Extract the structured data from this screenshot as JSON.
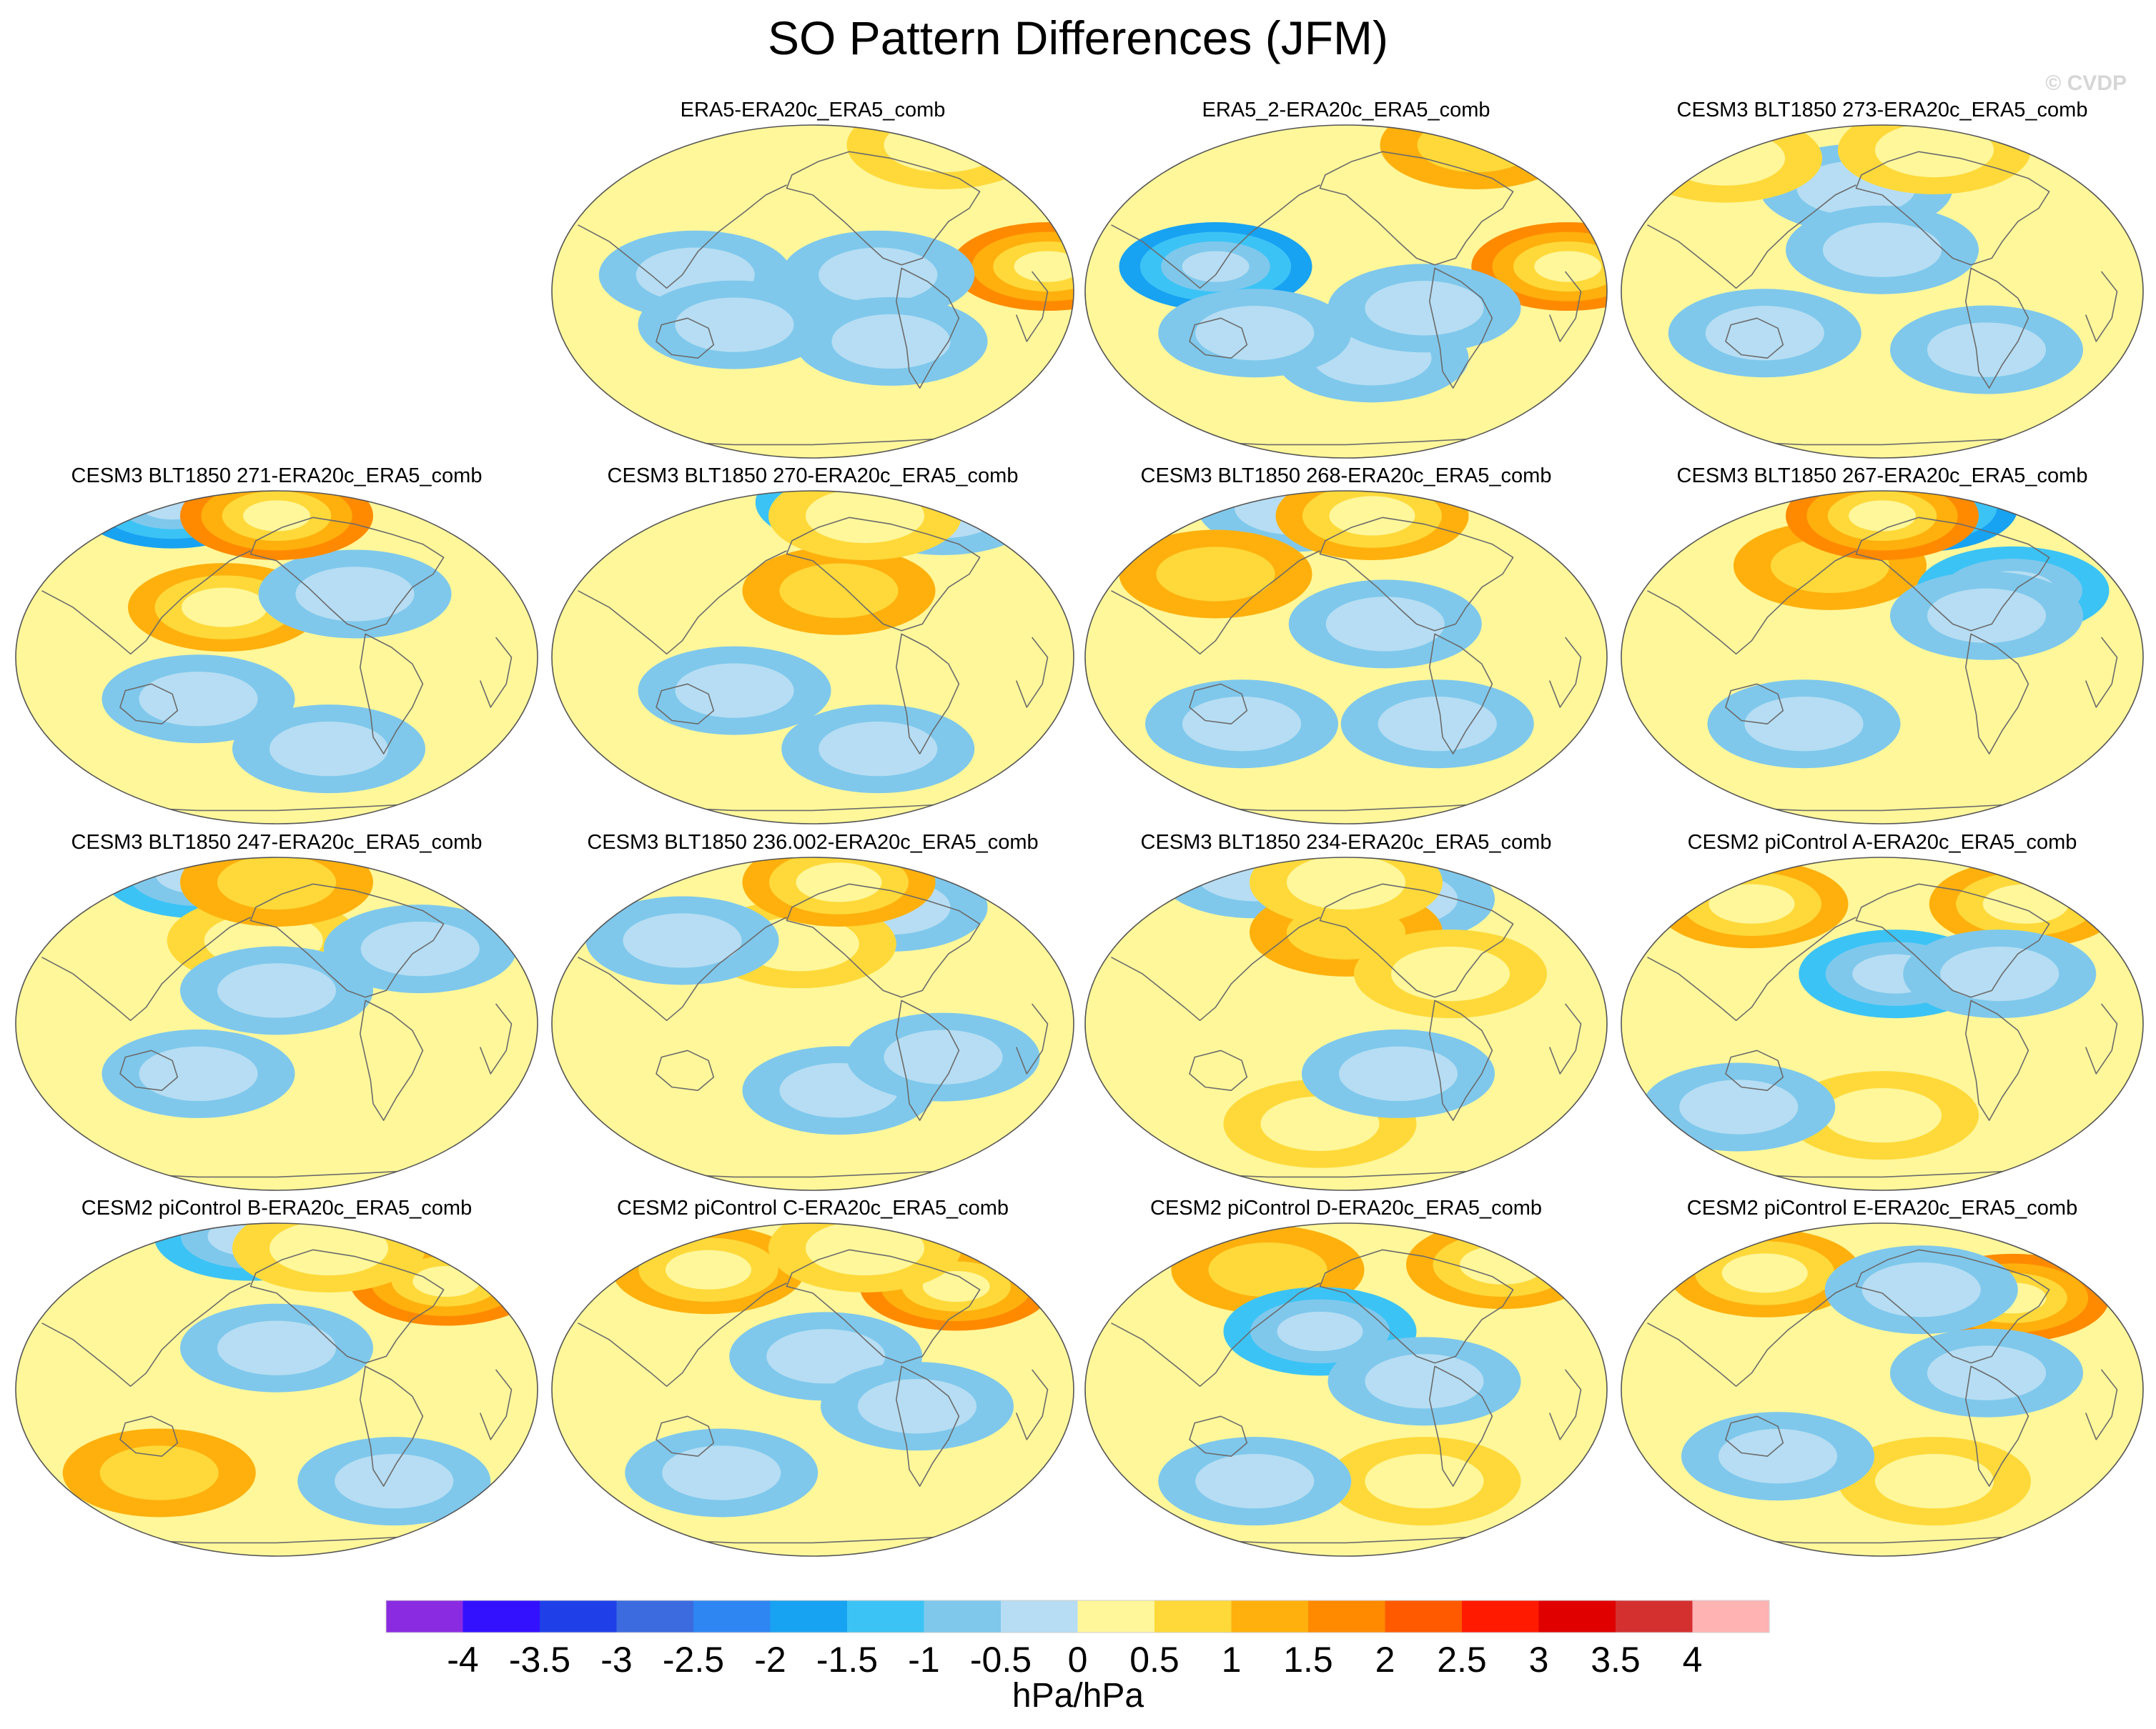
{
  "chart_data": {
    "type": "heatmap",
    "title": "SO Pattern Differences (JFM)",
    "watermark": "© CVDP",
    "colorbar": {
      "units": "hPa/hPa",
      "tick_labels": [
        "-4",
        "-3.5",
        "-3",
        "-2.5",
        "-2",
        "-1.5",
        "-1",
        "-0.5",
        "0",
        "0.5",
        "1",
        "1.5",
        "2",
        "2.5",
        "3",
        "3.5",
        "4"
      ],
      "levels": [
        -4,
        -3.5,
        -3,
        -2.5,
        -2,
        -1.5,
        -1,
        -0.5,
        0,
        0.5,
        1,
        1.5,
        2,
        2.5,
        3,
        3.5,
        4
      ],
      "colors": [
        "#8a2be2",
        "#3311ff",
        "#1f3fe8",
        "#3b6bdf",
        "#2d86f2",
        "#18a2f2",
        "#3cc3f5",
        "#7fc8ec",
        "#b6ddf3",
        "#fff79a",
        "#ffd93a",
        "#ffb00d",
        "#ff8a00",
        "#ff5a00",
        "#ff1a00",
        "#e00000",
        "#d53030",
        "#ffb3b3"
      ]
    },
    "panels": [
      {
        "label": "ERA5-ERA20c_ERA5_comb",
        "row": 0,
        "col": 1,
        "anomalies": [
          [
            -0.45,
            0.1,
            -0.8
          ],
          [
            0.9,
            0.15,
            1.6
          ],
          [
            0.25,
            0.1,
            -0.6
          ],
          [
            -0.3,
            -0.2,
            -0.6
          ],
          [
            0.3,
            -0.3,
            -0.6
          ],
          [
            0.5,
            0.88,
            0.8
          ]
        ]
      },
      {
        "label": "ERA5_2-ERA20c_ERA5_comb",
        "row": 0,
        "col": 2,
        "anomalies": [
          [
            -0.5,
            0.15,
            -1.6
          ],
          [
            0.85,
            0.15,
            1.6
          ],
          [
            0.1,
            -0.4,
            -0.7
          ],
          [
            -0.35,
            -0.25,
            -0.6
          ],
          [
            0.5,
            0.88,
            1.0
          ],
          [
            0.3,
            -0.1,
            -0.6
          ]
        ]
      },
      {
        "label": "CESM3 BLT1850 273-ERA20c_ERA5_comb",
        "row": 0,
        "col": 3,
        "anomalies": [
          [
            -0.1,
            0.62,
            -0.9
          ],
          [
            0.0,
            0.25,
            -0.8
          ],
          [
            -0.45,
            -0.25,
            -0.6
          ],
          [
            0.4,
            -0.35,
            -0.6
          ],
          [
            0.2,
            0.85,
            0.9
          ],
          [
            -0.6,
            0.8,
            0.7
          ]
        ]
      },
      {
        "label": "CESM3 BLT1850 271-ERA20c_ERA5_comb",
        "row": 1,
        "col": 0,
        "anomalies": [
          [
            -0.4,
            0.92,
            -2.0
          ],
          [
            -0.2,
            0.3,
            1.4
          ],
          [
            0.3,
            0.38,
            -1.0
          ],
          [
            -0.3,
            -0.25,
            -0.7
          ],
          [
            0.2,
            -0.55,
            -0.8
          ],
          [
            0.0,
            0.85,
            1.6
          ]
        ]
      },
      {
        "label": "CESM3 BLT1850 270-ERA20c_ERA5_comb",
        "row": 1,
        "col": 1,
        "anomalies": [
          [
            0.15,
            0.93,
            -1.5
          ],
          [
            0.5,
            0.88,
            -0.9
          ],
          [
            0.1,
            0.4,
            1.0
          ],
          [
            -0.3,
            -0.2,
            -0.7
          ],
          [
            0.25,
            -0.55,
            -0.7
          ],
          [
            0.2,
            0.85,
            0.9
          ]
        ]
      },
      {
        "label": "CESM3 BLT1850 268-ERA20c_ERA5_comb",
        "row": 1,
        "col": 2,
        "anomalies": [
          [
            -0.2,
            0.9,
            -1.0
          ],
          [
            -0.5,
            0.5,
            1.0
          ],
          [
            0.15,
            0.2,
            -0.7
          ],
          [
            -0.4,
            -0.4,
            -0.7
          ],
          [
            0.1,
            0.85,
            1.4
          ],
          [
            0.35,
            -0.4,
            -0.6
          ]
        ]
      },
      {
        "label": "CESM3 BLT1850 267-ERA20c_ERA5_comb",
        "row": 1,
        "col": 3,
        "anomalies": [
          [
            0.15,
            0.9,
            -1.6
          ],
          [
            -0.2,
            0.55,
            1.0
          ],
          [
            0.5,
            0.4,
            -1.1
          ],
          [
            -0.3,
            -0.4,
            -0.7
          ],
          [
            0.0,
            0.85,
            1.6
          ],
          [
            0.4,
            0.25,
            -0.6
          ]
        ]
      },
      {
        "label": "CESM3 BLT1850 247-ERA20c_ERA5_comb",
        "row": 2,
        "col": 0,
        "anomalies": [
          [
            -0.3,
            0.9,
            -1.1
          ],
          [
            -0.05,
            0.5,
            0.9
          ],
          [
            0.55,
            0.45,
            -0.8
          ],
          [
            0.0,
            0.2,
            -0.6
          ],
          [
            0.0,
            0.85,
            1.0
          ],
          [
            -0.3,
            -0.3,
            -0.6
          ]
        ]
      },
      {
        "label": "CESM3 BLT1850 236.002-ERA20c_ERA5_comb",
        "row": 2,
        "col": 1,
        "anomalies": [
          [
            0.3,
            0.7,
            -1.0
          ],
          [
            -0.05,
            0.48,
            0.9
          ],
          [
            -0.5,
            0.5,
            -0.7
          ],
          [
            0.1,
            -0.4,
            -0.7
          ],
          [
            0.1,
            0.85,
            1.2
          ],
          [
            0.5,
            -0.2,
            -0.6
          ]
        ]
      },
      {
        "label": "CESM3 BLT1850 234-ERA20c_ERA5_comb",
        "row": 2,
        "col": 2,
        "anomalies": [
          [
            -0.35,
            0.9,
            -0.9
          ],
          [
            0.2,
            0.75,
            -0.8
          ],
          [
            0.0,
            0.55,
            1.0
          ],
          [
            0.4,
            0.3,
            0.9
          ],
          [
            -0.1,
            -0.6,
            0.8
          ],
          [
            0.0,
            0.85,
            0.9
          ],
          [
            0.2,
            -0.3,
            -0.6
          ]
        ]
      },
      {
        "label": "CESM2 piControl A-ERA20c_ERA5_comb",
        "row": 2,
        "col": 3,
        "anomalies": [
          [
            -0.5,
            0.72,
            1.4
          ],
          [
            0.55,
            0.72,
            1.4
          ],
          [
            0.05,
            0.3,
            -1.3
          ],
          [
            0.45,
            0.3,
            -0.6
          ],
          [
            0.0,
            -0.55,
            0.7
          ],
          [
            -0.55,
            -0.5,
            -0.6
          ]
        ]
      },
      {
        "label": "CESM2 piControl B-ERA20c_ERA5_comb",
        "row": 3,
        "col": 0,
        "anomalies": [
          [
            -0.1,
            0.92,
            -1.5
          ],
          [
            0.65,
            0.65,
            1.8
          ],
          [
            0.0,
            0.25,
            -0.6
          ],
          [
            -0.45,
            -0.5,
            1.0
          ],
          [
            0.45,
            -0.55,
            -0.8
          ],
          [
            0.2,
            0.85,
            0.6
          ]
        ]
      },
      {
        "label": "CESM2 piControl C-ERA20c_ERA5_comb",
        "row": 3,
        "col": 1,
        "anomalies": [
          [
            -0.4,
            0.72,
            1.2
          ],
          [
            0.55,
            0.62,
            1.6
          ],
          [
            0.05,
            0.2,
            -0.6
          ],
          [
            0.4,
            -0.1,
            -0.7
          ],
          [
            0.2,
            0.85,
            0.8
          ],
          [
            -0.35,
            -0.5,
            -0.6
          ]
        ]
      },
      {
        "label": "CESM2 piControl D-ERA20c_ERA5_comb",
        "row": 3,
        "col": 2,
        "anomalies": [
          [
            -0.3,
            0.72,
            1.0
          ],
          [
            0.6,
            0.75,
            1.4
          ],
          [
            -0.1,
            0.35,
            -1.5
          ],
          [
            0.3,
            0.05,
            -0.7
          ],
          [
            0.3,
            -0.55,
            0.9
          ],
          [
            -0.35,
            -0.55,
            -0.6
          ]
        ]
      },
      {
        "label": "CESM2 piControl E-ERA20c_ERA5_comb",
        "row": 3,
        "col": 3,
        "anomalies": [
          [
            -0.45,
            0.7,
            1.4
          ],
          [
            0.5,
            0.55,
            1.8
          ],
          [
            0.15,
            0.6,
            -0.7
          ],
          [
            0.4,
            0.1,
            -0.7
          ],
          [
            0.2,
            -0.55,
            0.8
          ],
          [
            -0.4,
            -0.4,
            -0.6
          ]
        ]
      }
    ]
  }
}
